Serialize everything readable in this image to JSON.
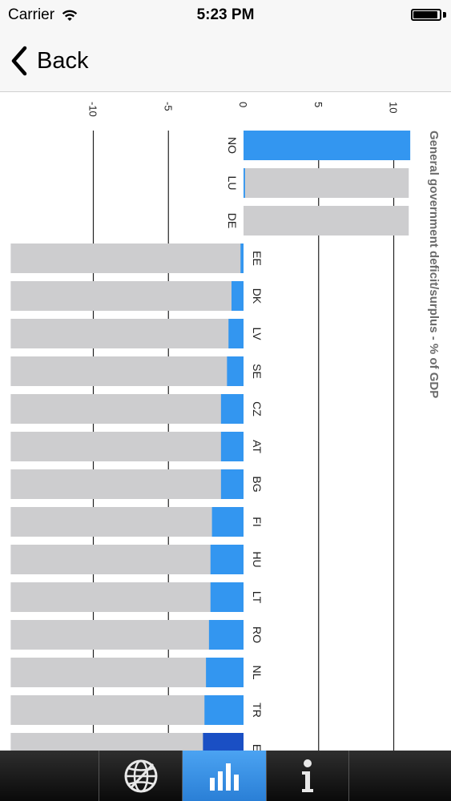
{
  "status_bar": {
    "carrier": "Carrier",
    "time": "5:23 PM",
    "battery_level": 0.95
  },
  "nav": {
    "back_label": "Back"
  },
  "tabs": [
    {
      "icon": "globe-icon",
      "active": false
    },
    {
      "icon": "bar-chart-icon",
      "active": true
    },
    {
      "icon": "info-icon",
      "active": false
    }
  ],
  "colors": {
    "accent": "#3396f0",
    "bar_background": "#cdcdcf",
    "highlight": "#1a4fc4"
  },
  "chart_data": {
    "type": "bar",
    "title": "General government deficit/surplus - % of GDP",
    "orientation": "rotated-90-clockwise",
    "axis_ticks": [
      "-10",
      "-5",
      "0",
      "5",
      "10"
    ],
    "axis_range": [
      -15.5,
      11
    ],
    "categories": [
      "NO",
      "LU",
      "DE",
      "EE",
      "DK",
      "LV",
      "SE",
      "CZ",
      "AT",
      "BG",
      "FI",
      "HU",
      "LT",
      "RO",
      "NL",
      "TR",
      "E"
    ],
    "values": [
      11.1,
      0.1,
      0.0,
      -0.2,
      -0.8,
      -1.0,
      -1.1,
      -1.5,
      -1.5,
      -1.5,
      -2.1,
      -2.2,
      -2.2,
      -2.3,
      -2.5,
      -2.6,
      -2.7
    ],
    "highlighted": [
      "E"
    ]
  }
}
